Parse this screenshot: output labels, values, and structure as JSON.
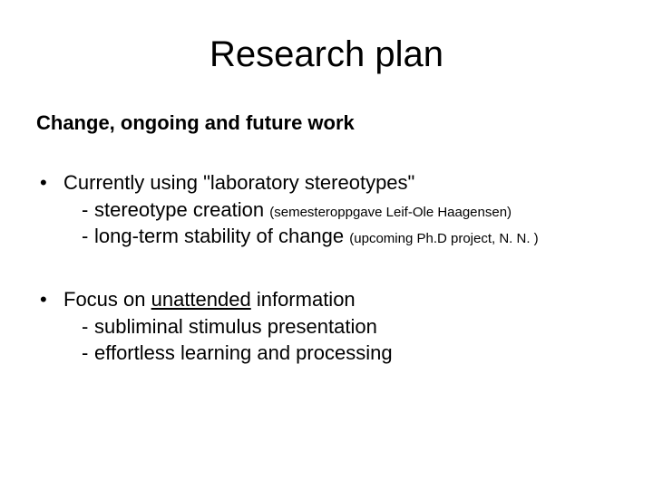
{
  "title": "Research plan",
  "subtitle": "Change, ongoing and future work",
  "bullets": [
    {
      "main": "Currently using \"laboratory stereotypes\"",
      "subs": [
        {
          "lead": "stereotype creation ",
          "paren": "(semesteroppgave Leif-Ole Haagensen)"
        },
        {
          "lead": "long-term stability of change ",
          "paren": "(upcoming Ph.D project, N. N. )"
        }
      ]
    },
    {
      "main_pre": "Focus on ",
      "main_underlined": "unattended",
      "main_post": " information",
      "subs": [
        {
          "lead": "subliminal stimulus presentation"
        },
        {
          "lead": "effortless learning and processing"
        }
      ]
    }
  ],
  "style": {
    "background_color": "#ffffff",
    "text_color": "#000000",
    "title_fontsize": 40,
    "subtitle_fontsize": 22,
    "body_fontsize": 22,
    "paren_fontsize": 15,
    "font_family": "Arial"
  }
}
